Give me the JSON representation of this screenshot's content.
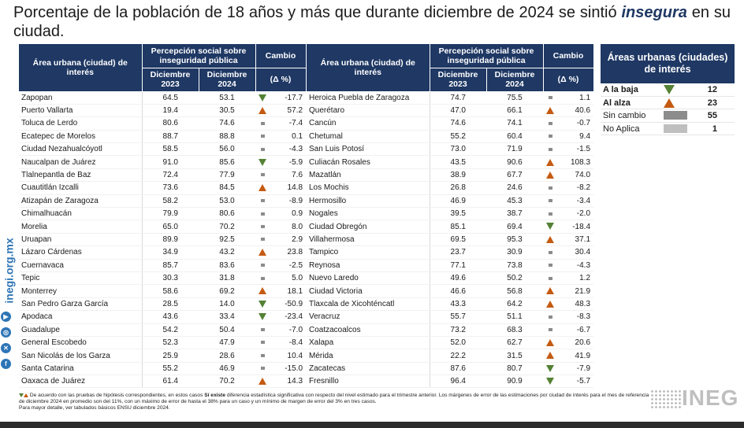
{
  "title": {
    "part1": "Porcentaje de la población de 18 años y más que durante diciembre de 2024 se sintió",
    "emphasis": "insegura",
    "part2": " en su ciudad."
  },
  "headers": {
    "area": "Área urbana (ciudad) de interés",
    "perception": "Percepción social sobre inseguridad pública",
    "change": "Cambio",
    "dec2023": "Diciembre 2023",
    "dec2024": "Diciembre 2024",
    "delta": "(Δ %)"
  },
  "left_rows": [
    {
      "city": "Zapopan",
      "v2023": "64.5",
      "v2024": "53.1",
      "trend": "down",
      "change": "-17.7"
    },
    {
      "city": "Puerto Vallarta",
      "v2023": "19.4",
      "v2024": "30.5",
      "trend": "up",
      "change": "57.2"
    },
    {
      "city": "Toluca de Lerdo",
      "v2023": "80.6",
      "v2024": "74.6",
      "trend": "same",
      "change": "-7.4"
    },
    {
      "city": "Ecatepec de Morelos",
      "v2023": "88.7",
      "v2024": "88.8",
      "trend": "same",
      "change": "0.1"
    },
    {
      "city": "Ciudad Nezahualcóyotl",
      "v2023": "58.5",
      "v2024": "56.0",
      "trend": "same",
      "change": "-4.3"
    },
    {
      "city": "Naucalpan de Juárez",
      "v2023": "91.0",
      "v2024": "85.6",
      "trend": "down",
      "change": "-5.9"
    },
    {
      "city": "Tlalnepantla de Baz",
      "v2023": "72.4",
      "v2024": "77.9",
      "trend": "same",
      "change": "7.6"
    },
    {
      "city": "Cuautitlán Izcalli",
      "v2023": "73.6",
      "v2024": "84.5",
      "trend": "up",
      "change": "14.8"
    },
    {
      "city": "Atizapán de Zaragoza",
      "v2023": "58.2",
      "v2024": "53.0",
      "trend": "same",
      "change": "-8.9"
    },
    {
      "city": "Chimalhuacán",
      "v2023": "79.9",
      "v2024": "80.6",
      "trend": "same",
      "change": "0.9"
    },
    {
      "city": "Morelia",
      "v2023": "65.0",
      "v2024": "70.2",
      "trend": "same",
      "change": "8.0"
    },
    {
      "city": "Uruapan",
      "v2023": "89.9",
      "v2024": "92.5",
      "trend": "same",
      "change": "2.9"
    },
    {
      "city": "Lázaro Cárdenas",
      "v2023": "34.9",
      "v2024": "43.2",
      "trend": "up",
      "change": "23.8"
    },
    {
      "city": "Cuernavaca",
      "v2023": "85.7",
      "v2024": "83.6",
      "trend": "same",
      "change": "-2.5"
    },
    {
      "city": "Tepic",
      "v2023": "30.3",
      "v2024": "31.8",
      "trend": "same",
      "change": "5.0"
    },
    {
      "city": "Monterrey",
      "v2023": "58.6",
      "v2024": "69.2",
      "trend": "up",
      "change": "18.1"
    },
    {
      "city": "San Pedro Garza García",
      "v2023": "28.5",
      "v2024": "14.0",
      "trend": "down",
      "change": "-50.9"
    },
    {
      "city": "Apodaca",
      "v2023": "43.6",
      "v2024": "33.4",
      "trend": "down",
      "change": "-23.4"
    },
    {
      "city": "Guadalupe",
      "v2023": "54.2",
      "v2024": "50.4",
      "trend": "same",
      "change": "-7.0"
    },
    {
      "city": "General Escobedo",
      "v2023": "52.3",
      "v2024": "47.9",
      "trend": "same",
      "change": "-8.4"
    },
    {
      "city": "San Nicolás de los Garza",
      "v2023": "25.9",
      "v2024": "28.6",
      "trend": "same",
      "change": "10.4"
    },
    {
      "city": "Santa Catarina",
      "v2023": "55.2",
      "v2024": "46.9",
      "trend": "same",
      "change": "-15.0"
    },
    {
      "city": "Oaxaca de Juárez",
      "v2023": "61.4",
      "v2024": "70.2",
      "trend": "up",
      "change": "14.3"
    }
  ],
  "right_rows": [
    {
      "city": "Heroica Puebla de Zaragoza",
      "v2023": "74.7",
      "v2024": "75.5",
      "trend": "same",
      "change": "1.1"
    },
    {
      "city": "Querétaro",
      "v2023": "47.0",
      "v2024": "66.1",
      "trend": "up",
      "change": "40.6"
    },
    {
      "city": "Cancún",
      "v2023": "74.6",
      "v2024": "74.1",
      "trend": "same",
      "change": "-0.7"
    },
    {
      "city": "Chetumal",
      "v2023": "55.2",
      "v2024": "60.4",
      "trend": "same",
      "change": "9.4"
    },
    {
      "city": "San Luis Potosí",
      "v2023": "73.0",
      "v2024": "71.9",
      "trend": "same",
      "change": "-1.5"
    },
    {
      "city": "Culiacán Rosales",
      "v2023": "43.5",
      "v2024": "90.6",
      "trend": "up",
      "change": "108.3"
    },
    {
      "city": "Mazatlán",
      "v2023": "38.9",
      "v2024": "67.7",
      "trend": "up",
      "change": "74.0"
    },
    {
      "city": "Los Mochis",
      "v2023": "26.8",
      "v2024": "24.6",
      "trend": "same",
      "change": "-8.2"
    },
    {
      "city": "Hermosillo",
      "v2023": "46.9",
      "v2024": "45.3",
      "trend": "same",
      "change": "-3.4"
    },
    {
      "city": "Nogales",
      "v2023": "39.5",
      "v2024": "38.7",
      "trend": "same",
      "change": "-2.0"
    },
    {
      "city": "Ciudad Obregón",
      "v2023": "85.1",
      "v2024": "69.4",
      "trend": "down",
      "change": "-18.4"
    },
    {
      "city": "Villahermosa",
      "v2023": "69.5",
      "v2024": "95.3",
      "trend": "up",
      "change": "37.1"
    },
    {
      "city": "Tampico",
      "v2023": "23.7",
      "v2024": "30.9",
      "trend": "same",
      "change": "30.4"
    },
    {
      "city": "Reynosa",
      "v2023": "77.1",
      "v2024": "73.8",
      "trend": "same",
      "change": "-4.3"
    },
    {
      "city": "Nuevo Laredo",
      "v2023": "49.6",
      "v2024": "50.2",
      "trend": "same",
      "change": "1.2"
    },
    {
      "city": "Ciudad Victoria",
      "v2023": "46.6",
      "v2024": "56.8",
      "trend": "up",
      "change": "21.9"
    },
    {
      "city": "Tlaxcala de Xicohténcatl",
      "v2023": "43.3",
      "v2024": "64.2",
      "trend": "up",
      "change": "48.3"
    },
    {
      "city": "Veracruz",
      "v2023": "55.7",
      "v2024": "51.1",
      "trend": "same",
      "change": "-8.3"
    },
    {
      "city": "Coatzacoalcos",
      "v2023": "73.2",
      "v2024": "68.3",
      "trend": "same",
      "change": "-6.7"
    },
    {
      "city": "Xalapa",
      "v2023": "52.0",
      "v2024": "62.7",
      "trend": "up",
      "change": "20.6"
    },
    {
      "city": "Mérida",
      "v2023": "22.2",
      "v2024": "31.5",
      "trend": "up",
      "change": "41.9"
    },
    {
      "city": "Zacatecas",
      "v2023": "87.6",
      "v2024": "80.7",
      "trend": "down",
      "change": "-7.9"
    },
    {
      "city": "Fresnillo",
      "v2023": "96.4",
      "v2024": "90.9",
      "trend": "down",
      "change": "-5.7"
    }
  ],
  "legend": {
    "title": "Áreas urbanas (ciudades) de interés",
    "items": [
      {
        "label": "A la baja",
        "symbol": "down",
        "count": "12"
      },
      {
        "label": "Al alza",
        "symbol": "up",
        "count": "23"
      },
      {
        "label": "Sin cambio",
        "symbol": "swatch-dark",
        "count": "55"
      },
      {
        "label": "No Aplica",
        "symbol": "swatch-light",
        "count": "1"
      }
    ]
  },
  "side": {
    "brand": "inegi.org.mx",
    "icons": [
      "youtube-icon",
      "instagram-icon",
      "x-icon",
      "facebook-icon"
    ]
  },
  "footnote": {
    "text1": " De acuerdo con las pruebas de hipótesis correspondientes, en estos casos ",
    "bold": "Sí existe",
    "text2": " diferencia estadística significativa con respecto del nivel estimado para el trimestre anterior. Los márgenes de error de las estimaciones por ciudad de interés para el mes de referencia de diciembre 2024 en promedio son del 11%, con un máximo de error de hasta el 38% para un caso y un mínimo de margen de error del 3% en tres casos.",
    "text3": "Para mayor detalle, ver tabulados básicos ENSU diciembre 2024."
  },
  "logo": "INEG",
  "colors": {
    "header": "#1f3864",
    "down": "#548235",
    "up": "#c55a11",
    "same": "#8c8c8c",
    "na": "#bfbfbf"
  }
}
